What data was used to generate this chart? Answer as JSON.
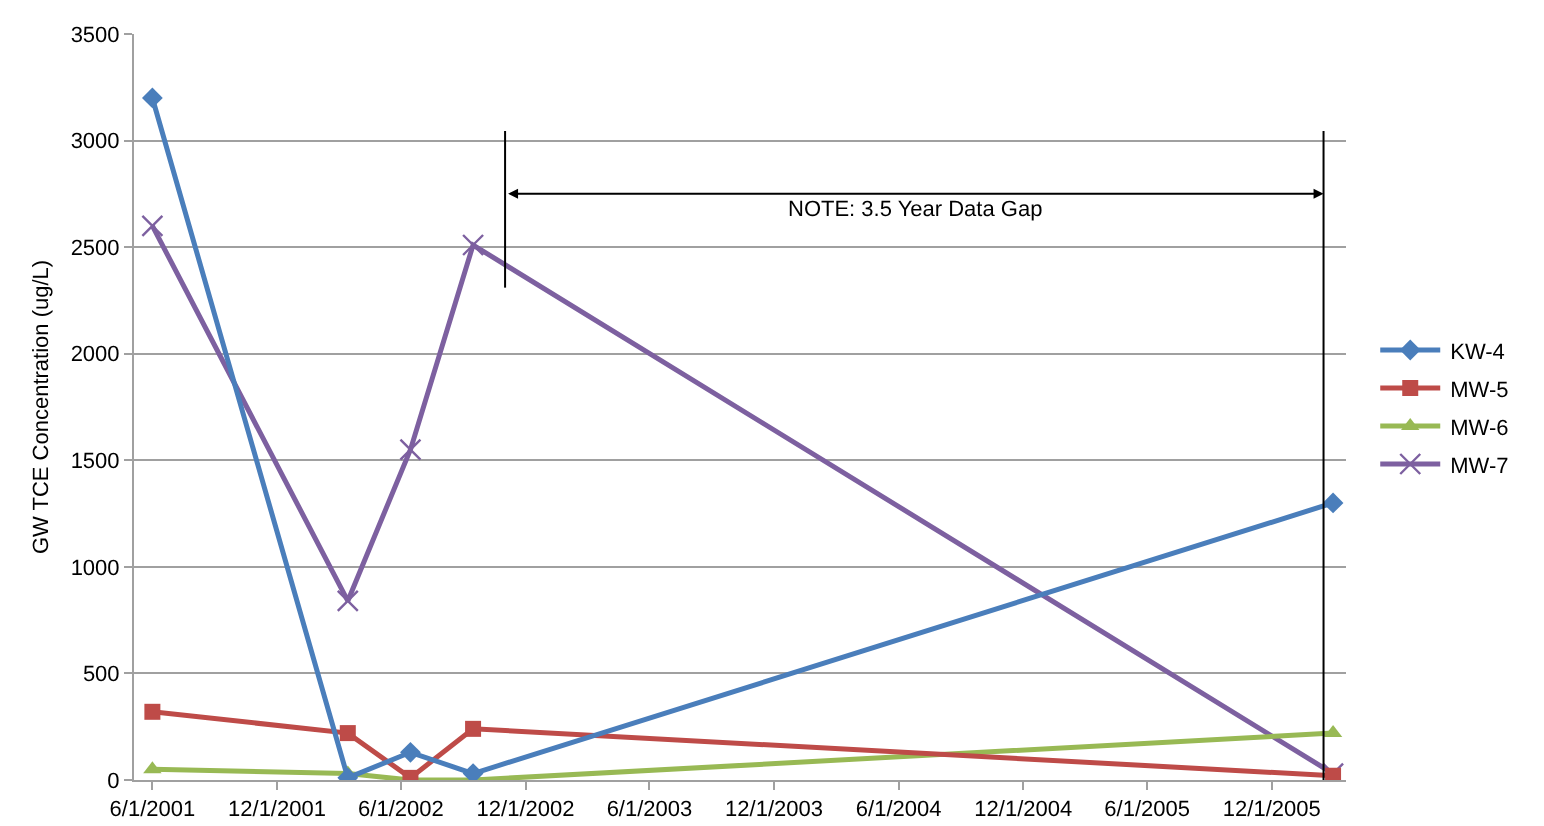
{
  "chart_data": {
    "type": "line",
    "ylabel": "GW TCE Concentration (ug/L)",
    "x": [
      "2001-06-01",
      "2002-03-15",
      "2002-06-15",
      "2002-09-15",
      "2006-03-01"
    ],
    "xlim": [
      "2001-05-05",
      "2006-03-20"
    ],
    "xticks": [
      {
        "value": "2001-06-01",
        "label": "6/1/2001"
      },
      {
        "value": "2001-12-01",
        "label": "12/1/2001"
      },
      {
        "value": "2002-06-01",
        "label": "6/1/2002"
      },
      {
        "value": "2002-12-01",
        "label": "12/1/2002"
      },
      {
        "value": "2003-06-01",
        "label": "6/1/2003"
      },
      {
        "value": "2003-12-01",
        "label": "12/1/2003"
      },
      {
        "value": "2004-06-01",
        "label": "6/1/2004"
      },
      {
        "value": "2004-12-01",
        "label": "12/1/2004"
      },
      {
        "value": "2005-06-01",
        "label": "6/1/2005"
      },
      {
        "value": "2005-12-01",
        "label": "12/1/2005"
      }
    ],
    "ylim": [
      0,
      3500
    ],
    "yticks": [
      0,
      500,
      1000,
      1500,
      2000,
      2500,
      3000,
      3500
    ],
    "series": [
      {
        "name": "KW-4",
        "color": "#4a7ebb",
        "marker": "diamond",
        "values": [
          3200,
          10,
          130,
          30,
          1300
        ]
      },
      {
        "name": "MW-5",
        "color": "#be4b48",
        "marker": "square",
        "values": [
          320,
          220,
          10,
          240,
          20
        ]
      },
      {
        "name": "MW-6",
        "color": "#98b954",
        "marker": "triangle",
        "values": [
          50,
          30,
          0,
          0,
          220
        ]
      },
      {
        "name": "MW-7",
        "color": "#7d60a0",
        "marker": "cross",
        "values": [
          2600,
          840,
          1550,
          2510,
          30
        ]
      }
    ],
    "ref_lines": [
      {
        "axis": "x",
        "value": "2002-11-01",
        "color": "#000000"
      },
      {
        "axis": "x",
        "value": "2006-02-15",
        "color": "#000000"
      }
    ],
    "annotations": [
      "NOTE: 3.5 Year Data Gap"
    ],
    "grid": "y",
    "legend": "right"
  }
}
